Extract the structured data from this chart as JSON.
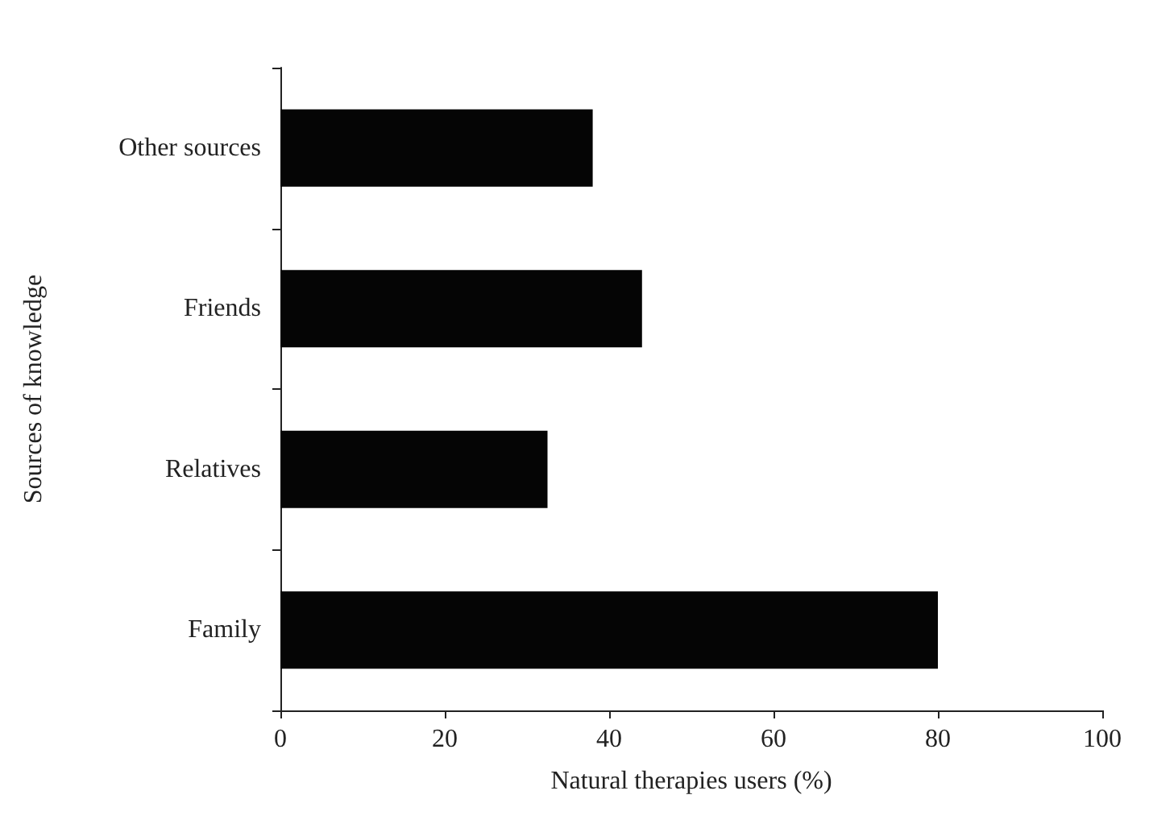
{
  "chart_data": {
    "type": "bar",
    "orientation": "horizontal",
    "categories": [
      "Other sources",
      "Friends",
      "Relatives",
      "Family"
    ],
    "values": [
      38,
      44,
      32.5,
      80
    ],
    "color": "#050505",
    "xlabel": "Natural therapies users (%)",
    "ylabel": "Sources of knowledge",
    "xlim": [
      0,
      100
    ],
    "xticks": [
      0,
      20,
      40,
      60,
      80,
      100
    ],
    "grid": false
  }
}
